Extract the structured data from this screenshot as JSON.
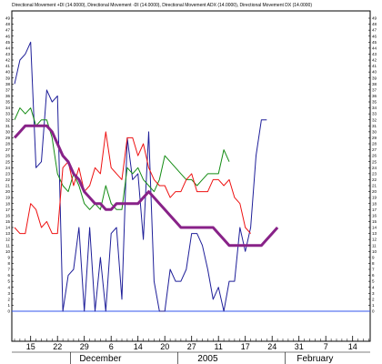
{
  "chart_data": {
    "type": "line",
    "title": "Directional Movement +DI (14.0000), Directional Movement -DI (14.0000), Directional Movement ADX (14.0000), Directional Movement DX (14.0000)",
    "ylim": [
      -1,
      49
    ],
    "yticks": [
      0,
      1,
      2,
      3,
      4,
      5,
      6,
      7,
      8,
      9,
      10,
      11,
      12,
      13,
      14,
      15,
      16,
      17,
      18,
      19,
      20,
      21,
      22,
      23,
      24,
      25,
      26,
      27,
      28,
      29,
      30,
      31,
      32,
      33,
      34,
      35,
      36,
      37,
      38,
      39,
      40,
      41,
      42,
      43,
      44,
      45,
      46,
      47,
      48,
      49
    ],
    "x_count": 54,
    "x_ticks": [
      {
        "i": 3,
        "label": "15"
      },
      {
        "i": 8,
        "label": "22"
      },
      {
        "i": 13,
        "label": "29"
      },
      {
        "i": 18,
        "label": "6"
      },
      {
        "i": 23,
        "label": "14"
      },
      {
        "i": 28,
        "label": "20"
      },
      {
        "i": 33,
        "label": "27"
      },
      {
        "i": 38,
        "label": "11"
      },
      {
        "i": 43,
        "label": "17"
      },
      {
        "i": 48,
        "label": "24"
      },
      {
        "i": 53,
        "label": "31"
      },
      {
        "i": 58,
        "label": "7"
      },
      {
        "i": 63,
        "label": "14"
      }
    ],
    "x_max_index": 66,
    "period_labels": [
      {
        "i": 16,
        "label": "December"
      },
      {
        "i": 36,
        "label": "2005"
      },
      {
        "i": 56,
        "label": "February"
      }
    ],
    "hline": 0,
    "grid": false,
    "series": [
      {
        "color": "#1f1f99",
        "width": 1,
        "values": [
          38,
          42,
          43,
          45,
          24,
          25,
          37,
          35,
          36,
          0,
          6,
          7,
          14,
          0,
          14,
          0,
          9,
          0,
          13,
          14,
          2,
          29,
          22,
          23,
          12,
          30,
          5,
          0,
          0,
          7,
          5,
          5,
          7,
          13,
          13,
          11,
          7,
          2,
          4,
          0,
          5,
          5,
          14,
          10,
          14,
          26,
          32,
          32
        ]
      },
      {
        "color": "#148c14",
        "width": 1,
        "values": [
          32,
          34,
          33,
          34,
          31,
          32,
          32,
          29,
          23,
          21,
          20,
          23,
          21,
          18,
          17,
          18,
          17,
          21,
          18,
          17,
          17,
          24,
          23,
          24,
          22,
          21,
          20,
          22,
          26,
          25,
          24,
          23,
          22,
          22,
          21,
          22,
          23,
          23,
          23,
          27,
          25
        ]
      },
      {
        "color": "#ee1111",
        "width": 1,
        "values": [
          14,
          13,
          13,
          18,
          17,
          14,
          15,
          13,
          13,
          24,
          25,
          21,
          24,
          20,
          21,
          24,
          23,
          30,
          24,
          23,
          22,
          29,
          29,
          26,
          28,
          24,
          22,
          21,
          21,
          19,
          20,
          20,
          22,
          23,
          20,
          20,
          20,
          22,
          22,
          21,
          22,
          19,
          18,
          14,
          13
        ]
      },
      {
        "color": "#882288",
        "width": 3,
        "values": [
          29,
          30,
          31,
          31,
          31,
          31,
          31,
          30,
          28,
          26,
          25,
          23,
          22,
          20,
          19,
          18,
          18,
          17,
          17,
          18,
          18,
          18,
          18,
          18,
          19,
          20,
          19,
          18,
          17,
          16,
          15,
          14,
          14,
          14,
          14,
          14,
          14,
          14,
          13,
          12,
          11,
          11,
          11,
          11,
          11,
          11,
          11,
          12,
          13,
          14
        ]
      }
    ]
  }
}
